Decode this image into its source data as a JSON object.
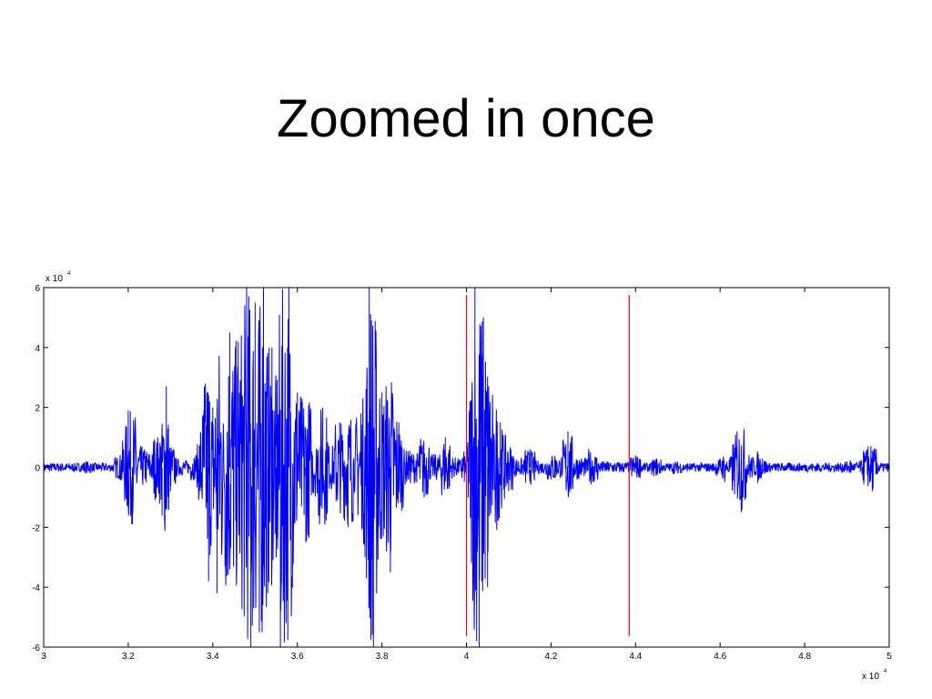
{
  "slide": {
    "title": "Zoomed in once"
  },
  "chart_data": {
    "type": "line",
    "x_multiplier_label": "x 10",
    "x_multiplier_exp": "4",
    "y_multiplier_label": "x 10",
    "y_multiplier_exp": "4",
    "xlim": [
      3.0,
      5.0
    ],
    "ylim": [
      -6,
      6
    ],
    "x_ticks": [
      3,
      3.2,
      3.4,
      3.6,
      3.8,
      4,
      4.2,
      4.4,
      4.6,
      4.8,
      5
    ],
    "x_tick_labels": [
      "3",
      "3.2",
      "3.4",
      "3.6",
      "3.8",
      "4",
      "4.2",
      "4.4",
      "4.6",
      "4.8",
      "5"
    ],
    "y_ticks": [
      -6,
      -4,
      -2,
      0,
      2,
      4,
      6
    ],
    "y_tick_labels": [
      "-6",
      "-4",
      "-2",
      "0",
      "2",
      "4",
      "6"
    ],
    "grid": false,
    "series": [
      {
        "color": "#0000ff",
        "description_points": [
          [
            3.0,
            0.0
          ],
          [
            3.1,
            0.2
          ],
          [
            3.18,
            -0.4
          ],
          [
            3.2,
            1.9
          ],
          [
            3.21,
            -1.9
          ],
          [
            3.27,
            1.0
          ],
          [
            3.28,
            -1.6
          ],
          [
            3.29,
            2.7
          ],
          [
            3.3,
            -0.8
          ],
          [
            3.36,
            0.4
          ],
          [
            3.38,
            2.7
          ],
          [
            3.39,
            -3.8
          ],
          [
            3.4,
            2.0
          ],
          [
            3.41,
            -4.2
          ],
          [
            3.44,
            4.5
          ],
          [
            3.46,
            4.2
          ],
          [
            3.48,
            6.0
          ],
          [
            3.49,
            -6.0
          ],
          [
            3.5,
            5.5
          ],
          [
            3.51,
            -5.5
          ],
          [
            3.52,
            6.0
          ],
          [
            3.53,
            -4.2
          ],
          [
            3.54,
            4.0
          ],
          [
            3.55,
            -3.0
          ],
          [
            3.56,
            -6.0
          ],
          [
            3.58,
            6.0
          ],
          [
            3.6,
            2.5
          ],
          [
            3.62,
            -2.5
          ],
          [
            3.66,
            2.0
          ],
          [
            3.7,
            1.5
          ],
          [
            3.72,
            -2.0
          ],
          [
            3.75,
            1.8
          ],
          [
            3.76,
            -3.0
          ],
          [
            3.77,
            6.0
          ],
          [
            3.78,
            -6.0
          ],
          [
            3.8,
            2.5
          ],
          [
            3.82,
            -3.5
          ],
          [
            3.84,
            1.5
          ],
          [
            3.9,
            -1.0
          ],
          [
            3.95,
            1.0
          ],
          [
            4.0,
            -0.5
          ],
          [
            4.02,
            6.0
          ],
          [
            4.03,
            -6.0
          ],
          [
            4.04,
            5.0
          ],
          [
            4.05,
            -4.0
          ],
          [
            4.08,
            1.5
          ],
          [
            4.1,
            -0.8
          ],
          [
            4.15,
            0.6
          ],
          [
            4.2,
            -0.4
          ],
          [
            4.24,
            1.2
          ],
          [
            4.3,
            -0.5
          ],
          [
            4.4,
            0.4
          ],
          [
            4.45,
            0.3
          ],
          [
            4.5,
            -0.2
          ],
          [
            4.6,
            0.3
          ],
          [
            4.64,
            1.2
          ],
          [
            4.65,
            -1.5
          ],
          [
            4.7,
            0.3
          ],
          [
            4.8,
            0.1
          ],
          [
            4.9,
            0.2
          ],
          [
            4.95,
            0.7
          ],
          [
            4.96,
            -0.8
          ],
          [
            5.0,
            0.0
          ]
        ]
      }
    ],
    "markers": [
      {
        "x": 4.0,
        "color": "#ff0000"
      },
      {
        "x": 4.385,
        "color": "#ff0000"
      }
    ]
  }
}
